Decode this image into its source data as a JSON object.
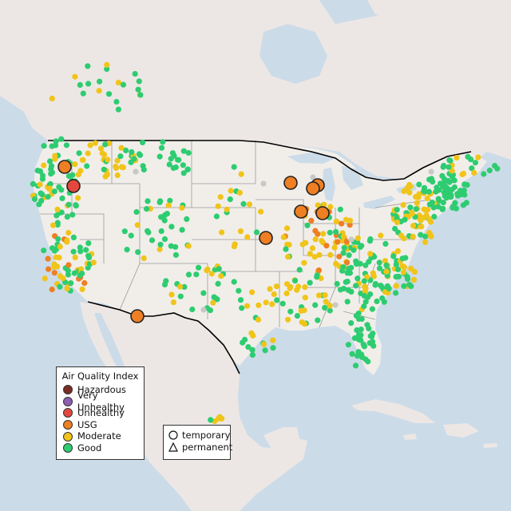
{
  "map": {
    "colors": {
      "ocean": "#ccdbe8",
      "land": "#f1eeea",
      "land_other": "#ece7e5",
      "state_border": "#9a9a9a",
      "country_border": "#000000"
    }
  },
  "aqi_legend": {
    "title": "Air Quality Index",
    "items": [
      {
        "label": "Hazardous",
        "color": "#7b2d22"
      },
      {
        "label": "Very Unhealthy",
        "color": "#8e5fb0"
      },
      {
        "label": "Unhealthy",
        "color": "#e4483d"
      },
      {
        "label": "USG",
        "color": "#ee7f22"
      },
      {
        "label": "Moderate",
        "color": "#f0c419"
      },
      {
        "label": "Good",
        "color": "#2ecc71"
      }
    ]
  },
  "monitor_type_legend": {
    "items": [
      {
        "label": "temporary",
        "shape": "circle"
      },
      {
        "label": "permanent",
        "shape": "triangle"
      }
    ]
  },
  "stations": {
    "no_data_color": "#c8c8c8",
    "large_monitors": [
      {
        "category": "USG"
      },
      {
        "category": "Unhealthy"
      },
      {
        "category": "USG"
      },
      {
        "category": "USG"
      },
      {
        "category": "USG"
      },
      {
        "category": "USG"
      },
      {
        "category": "USG"
      },
      {
        "category": "USG"
      },
      {
        "category": "USG"
      }
    ]
  }
}
